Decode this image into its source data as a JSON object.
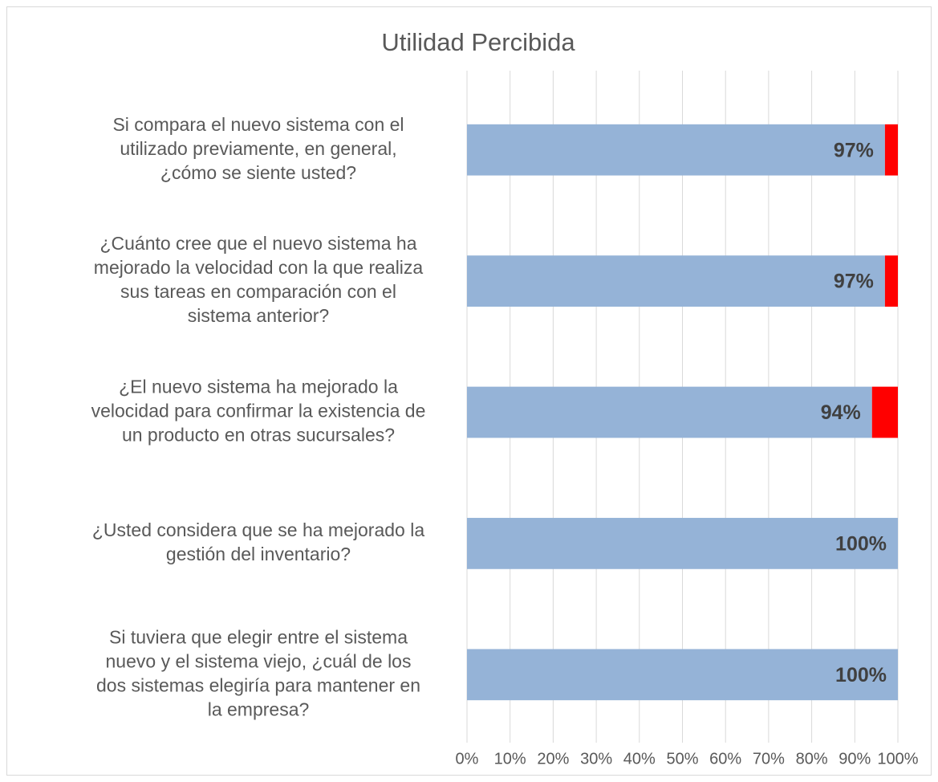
{
  "chart_data": {
    "type": "bar",
    "orientation": "horizontal",
    "stacked": true,
    "title": "Utilidad Percibida",
    "categories": [
      [
        "Si compara el nuevo sistema con el",
        "utilizado previamente, en general,",
        "¿cómo se siente usted?"
      ],
      [
        "¿Cuánto cree que el nuevo sistema ha",
        "mejorado la velocidad con la que realiza",
        "sus tareas en comparación con el",
        "sistema anterior?"
      ],
      [
        "¿El nuevo sistema ha mejorado la",
        "velocidad para confirmar la existencia de",
        "un producto en otras sucursales?"
      ],
      [
        "¿Usted considera que se ha mejorado la",
        "gestión del inventario?"
      ],
      [
        "Si tuviera que elegir entre el sistema",
        "nuevo y el sistema viejo, ¿cuál de los",
        "dos sistemas elegiría para mantener en",
        "la empresa?"
      ]
    ],
    "series": [
      {
        "color": "#95b3d7",
        "values": [
          97,
          97,
          94,
          100,
          100
        ],
        "value_labels": [
          "97%",
          "97%",
          "94%",
          "100%",
          "100%"
        ]
      },
      {
        "color": "#ff0000",
        "values": [
          3,
          3,
          6,
          0,
          0
        ]
      }
    ],
    "xlim": [
      0,
      100
    ],
    "xticks": [
      {
        "value": 0,
        "label": "0%"
      },
      {
        "value": 10,
        "label": "10%"
      },
      {
        "value": 20,
        "label": "20%"
      },
      {
        "value": 30,
        "label": "30%"
      },
      {
        "value": 40,
        "label": "40%"
      },
      {
        "value": 50,
        "label": "50%"
      },
      {
        "value": 60,
        "label": "60%"
      },
      {
        "value": 70,
        "label": "70%"
      },
      {
        "value": 80,
        "label": "80%"
      },
      {
        "value": 90,
        "label": "90%"
      },
      {
        "value": 100,
        "label": "100%"
      }
    ],
    "grid": true
  }
}
